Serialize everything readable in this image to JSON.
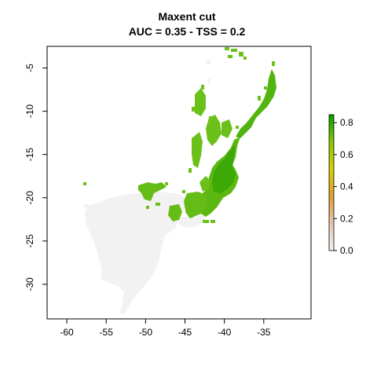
{
  "title_line1": "Maxent cut",
  "title_line2": "AUC = 0.35 - TSS = 0.2",
  "chart_data": {
    "type": "heatmap",
    "xlabel": "",
    "ylabel": "",
    "xlim": [
      -62.5,
      -29
    ],
    "ylim": [
      -34,
      -2.5
    ],
    "x_ticks": [
      -60,
      -55,
      -50,
      -45,
      -40,
      -35
    ],
    "x_tick_labels": [
      "-60",
      "-55",
      "-50",
      "-45",
      "-40",
      "-35"
    ],
    "y_ticks": [
      -5,
      -10,
      -15,
      -20,
      -25,
      -30
    ],
    "y_tick_labels": [
      "-5",
      "-10",
      "-15",
      "-20",
      "-25",
      "-30"
    ],
    "legend": {
      "position": "right",
      "min": 0.0,
      "max": 0.85,
      "ticks": [
        0.0,
        0.2,
        0.4,
        0.6,
        0.8
      ],
      "tick_labels": [
        "0.0",
        "0.2",
        "0.4",
        "0.6",
        "0.8"
      ],
      "colors": [
        "#f2f2f2",
        "#e8c4b0",
        "#e0a030",
        "#d8d000",
        "#88c800",
        "#00a000"
      ]
    },
    "colors": {
      "background_land": "#f2f2f2",
      "suitable_low": "#7cc21e",
      "suitable_high": "#2c9e00"
    }
  }
}
